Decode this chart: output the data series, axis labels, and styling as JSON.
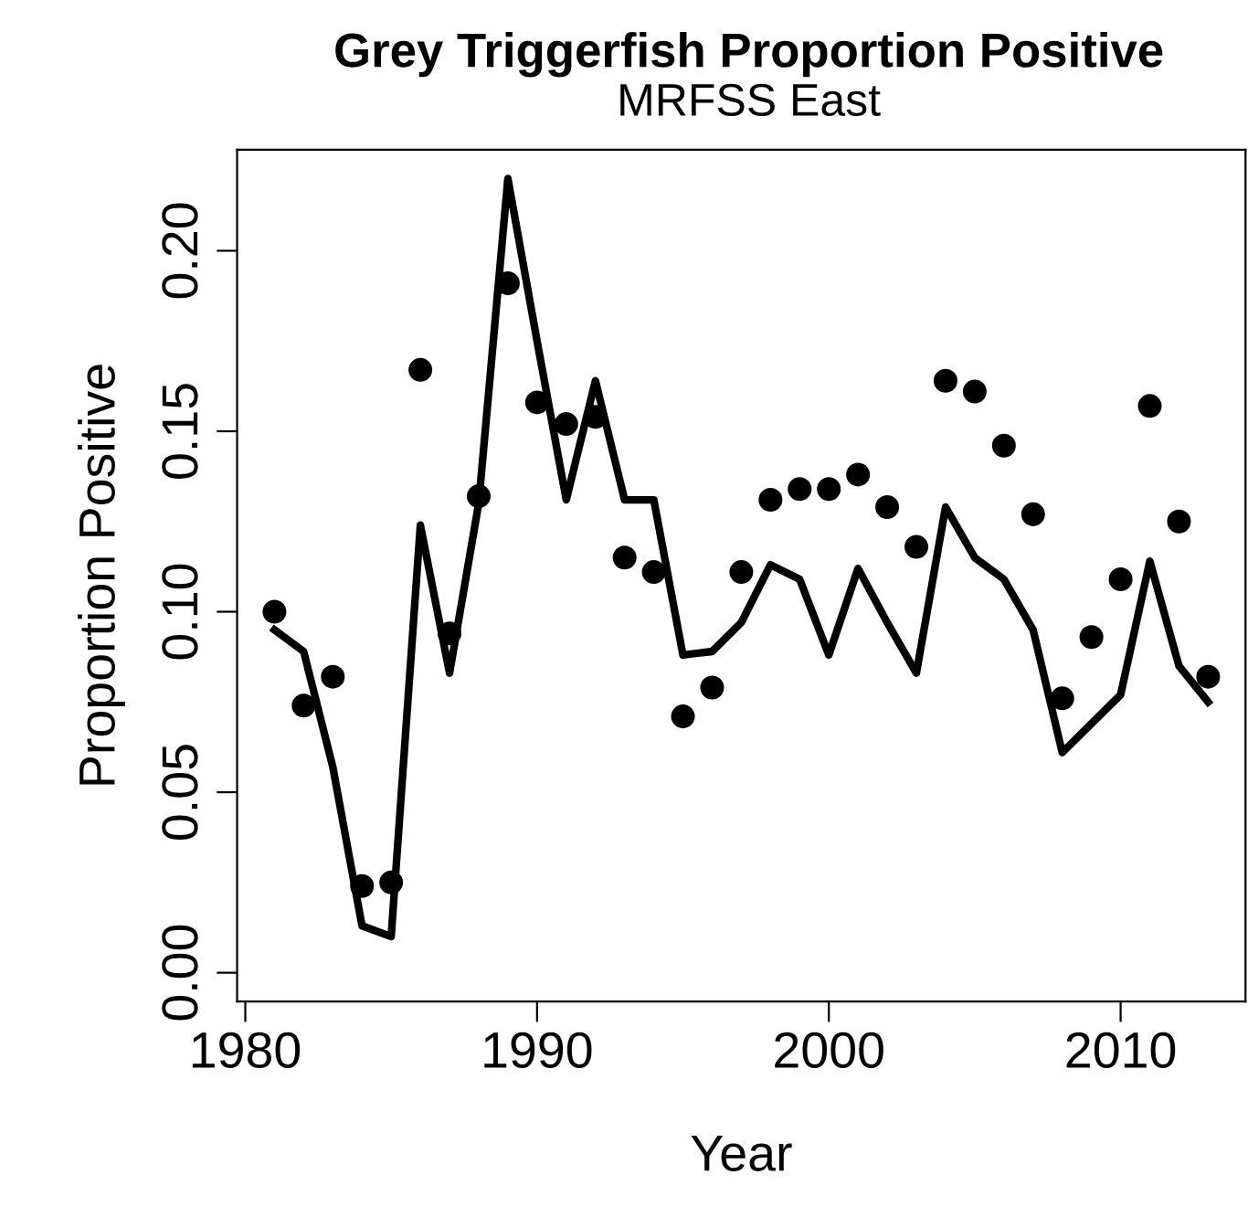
{
  "chart_data": {
    "type": "scatter",
    "title": "Grey Triggerfish Proportion Positive",
    "subtitle": "MRFSS East",
    "xlabel": "Year",
    "ylabel": "Proportion Positive",
    "x": [
      1981,
      1982,
      1983,
      1984,
      1985,
      1986,
      1987,
      1988,
      1989,
      1990,
      1991,
      1992,
      1993,
      1994,
      1995,
      1996,
      1997,
      1998,
      1999,
      2000,
      2001,
      2002,
      2003,
      2004,
      2005,
      2006,
      2007,
      2008,
      2009,
      2010,
      2011,
      2012,
      2013
    ],
    "series": [
      {
        "color": "#000000",
        "marker": "circle",
        "values": [
          0.1,
          0.074,
          0.082,
          0.024,
          0.025,
          0.167,
          0.094,
          0.132,
          0.191,
          0.158,
          0.152,
          0.154,
          0.115,
          0.111,
          0.071,
          0.079,
          0.111,
          0.131,
          0.134,
          0.134,
          0.138,
          0.129,
          0.118,
          0.164,
          0.161,
          0.146,
          0.127,
          0.076,
          0.093,
          0.109,
          0.157,
          0.125,
          0.082
        ]
      },
      {
        "type": "line",
        "color": "#000000",
        "line_style": "solid",
        "values": [
          0.095,
          0.089,
          0.057,
          0.013,
          0.01,
          0.124,
          0.083,
          0.13,
          0.22,
          0.175,
          0.131,
          0.164,
          0.131,
          0.131,
          0.088,
          0.089,
          0.097,
          0.113,
          0.109,
          0.088,
          0.112,
          0.097,
          0.083,
          0.129,
          0.115,
          0.109,
          0.095,
          0.061,
          0.069,
          0.077,
          0.114,
          0.085,
          0.075
        ]
      }
    ],
    "xlim": [
      1979.72,
      2014.28
    ],
    "ylim": [
      -0.008,
      0.228
    ],
    "xticks": [
      1980,
      1990,
      2000,
      2010
    ],
    "yticks": [
      {
        "value": 0,
        "label": "0.00"
      },
      {
        "value": 0.05,
        "label": "0.05"
      },
      {
        "value": 0.1,
        "label": "0.10"
      },
      {
        "value": 0.15,
        "label": "0.15"
      },
      {
        "value": 0.2,
        "label": "0.20"
      }
    ],
    "grid": false,
    "legend": false
  }
}
